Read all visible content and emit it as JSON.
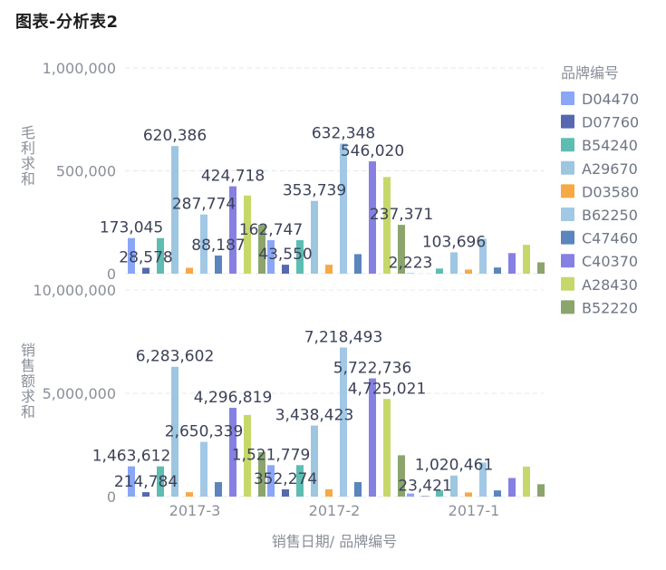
{
  "page_title": "图表-分析表2",
  "chart_data": {
    "type": "bar",
    "xlabel": "销售日期/ 品牌编号",
    "categories": [
      "2017-3",
      "2017-2",
      "2017-1"
    ],
    "legend": {
      "title": "品牌编号",
      "position": "right",
      "items": [
        {
          "name": "D04470",
          "color": "#8aa6f6"
        },
        {
          "name": "D07760",
          "color": "#5668b0"
        },
        {
          "name": "B54240",
          "color": "#5ebdb1"
        },
        {
          "name": "A29670",
          "color": "#9dc6e0"
        },
        {
          "name": "D03580",
          "color": "#f7a945"
        },
        {
          "name": "B62250",
          "color": "#a2c8e6"
        },
        {
          "name": "C47460",
          "color": "#5a85bd"
        },
        {
          "name": "C40370",
          "color": "#8680e3"
        },
        {
          "name": "A28430",
          "color": "#c6d86a"
        },
        {
          "name": "B52220",
          "color": "#8ba56c"
        }
      ]
    },
    "panels": [
      {
        "ylabel": "毛利求和",
        "ylim": [
          0,
          1000000
        ],
        "yticks": [
          {
            "value": 0,
            "label": "0"
          },
          {
            "value": 500000,
            "label": "500,000"
          },
          {
            "value": 1000000,
            "label": "1,000,000"
          }
        ],
        "series_values": [
          [
            173045,
            162747,
            2223
          ],
          [
            28578,
            43550,
            0
          ],
          [
            173045,
            162747,
            25000
          ],
          [
            620386,
            353739,
            103696
          ],
          [
            28578,
            43550,
            20000
          ],
          [
            287774,
            632348,
            170000
          ],
          [
            88187,
            95000,
            30000
          ],
          [
            424718,
            546020,
            100000
          ],
          [
            380000,
            470000,
            140000
          ],
          [
            237371,
            237371,
            55000
          ]
        ],
        "labels": [
          {
            "text": "173,045",
            "series": 0,
            "cat": 0
          },
          {
            "text": "28,578",
            "series": 1,
            "cat": 0
          },
          {
            "text": "620,386",
            "series": 3,
            "cat": 0
          },
          {
            "text": "287,774",
            "series": 5,
            "cat": 0
          },
          {
            "text": "88,187",
            "series": 6,
            "cat": 0
          },
          {
            "text": "424,718",
            "series": 7,
            "cat": 0
          },
          {
            "text": "162,747",
            "series": 0,
            "cat": 1
          },
          {
            "text": "43,550",
            "series": 1,
            "cat": 1
          },
          {
            "text": "353,739",
            "series": 3,
            "cat": 1
          },
          {
            "text": "632,348",
            "series": 5,
            "cat": 1
          },
          {
            "text": "546,020",
            "series": 7,
            "cat": 1
          },
          {
            "text": "237,371",
            "series": 9,
            "cat": 1
          },
          {
            "text": "2,223",
            "series": 0,
            "cat": 2
          },
          {
            "text": "103,696",
            "series": 3,
            "cat": 2
          }
        ]
      },
      {
        "ylabel": "销售额求和",
        "ylim": [
          0,
          10000000
        ],
        "yticks": [
          {
            "value": 0,
            "label": "0"
          },
          {
            "value": 5000000,
            "label": "5,000,000"
          },
          {
            "value": 10000000,
            "label": "10,000,000"
          }
        ],
        "series_values": [
          [
            1463612,
            1521779,
            150000
          ],
          [
            214784,
            352274,
            23421
          ],
          [
            1463612,
            1521779,
            300000
          ],
          [
            6283602,
            3438423,
            1020461
          ],
          [
            214784,
            352274,
            200000
          ],
          [
            2650339,
            7218493,
            1650000
          ],
          [
            700000,
            700000,
            300000
          ],
          [
            4296819,
            5722736,
            900000
          ],
          [
            3950000,
            4725021,
            1450000
          ],
          [
            2150000,
            2000000,
            600000
          ]
        ],
        "labels": [
          {
            "text": "1,463,612",
            "series": 0,
            "cat": 0
          },
          {
            "text": "214,784",
            "series": 1,
            "cat": 0
          },
          {
            "text": "6,283,602",
            "series": 3,
            "cat": 0
          },
          {
            "text": "2,650,339",
            "series": 5,
            "cat": 0
          },
          {
            "text": "4,296,819",
            "series": 7,
            "cat": 0
          },
          {
            "text": "1,521,779",
            "series": 0,
            "cat": 1
          },
          {
            "text": "352,274",
            "series": 1,
            "cat": 1
          },
          {
            "text": "3,438,423",
            "series": 3,
            "cat": 1
          },
          {
            "text": "7,218,493",
            "series": 5,
            "cat": 1
          },
          {
            "text": "5,722,736",
            "series": 7,
            "cat": 1
          },
          {
            "text": "4,725,021",
            "series": 8,
            "cat": 1
          },
          {
            "text": "23,421",
            "series": 1,
            "cat": 2
          },
          {
            "text": "1,020,461",
            "series": 3,
            "cat": 2
          }
        ]
      }
    ]
  }
}
